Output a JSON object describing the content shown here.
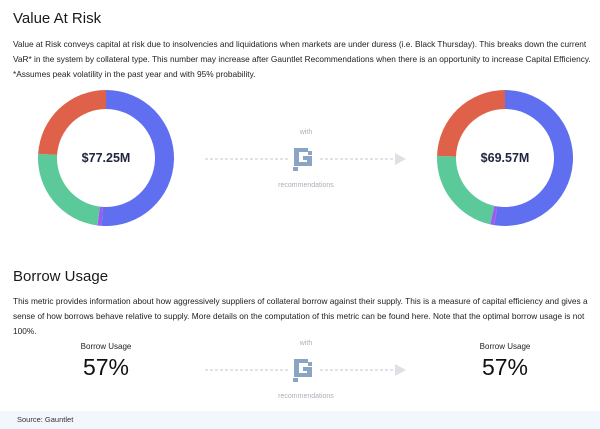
{
  "var_section": {
    "title": "Value At Risk",
    "description": "Value at Risk conveys capital at risk due to insolvencies and liquidations when markets are under duress (i.e. Black Thursday). This breaks down the current VaR* in the system by collateral type. This number may increase after Gauntlet Recommendations when there is an opportunity to increase Capital Efficiency. *Assumes peak volatility in the past year and with 95% probability.",
    "before_total": "$77.25M",
    "after_total": "$69.57M",
    "with_label": "with",
    "recommendations_label": "recommendations"
  },
  "chart_data": [
    {
      "type": "pie",
      "donut": true,
      "center_label": "$77.25M",
      "colors": [
        "#5f6ff0",
        "#9b5cf0",
        "#5cc99a",
        "#e0614a"
      ],
      "values_percent": [
        51,
        1,
        24,
        24
      ]
    },
    {
      "type": "pie",
      "donut": true,
      "center_label": "$69.57M",
      "colors": [
        "#5f6ff0",
        "#9b5cf0",
        "#5cc99a",
        "#e0614a"
      ],
      "values_percent": [
        52.5,
        1,
        22,
        24.5
      ]
    }
  ],
  "borrow_section": {
    "title": "Borrow Usage",
    "description": "This metric provides information about how aggressively suppliers of collateral borrow against their supply. This is a measure of capital efficiency and gives a sense of how borrows behave relative to supply. More details on the computation of this metric can be found here. Note that the optimal borrow usage is not 100%.",
    "before_label": "Borrow Usage",
    "before_value": "57%",
    "after_label": "Borrow Usage",
    "after_value": "57%",
    "with_label": "with",
    "recommendations_label": "recommendations"
  },
  "footer": {
    "source": "Source: Gauntlet"
  },
  "colors": {
    "logo": "#8aa5c4",
    "arrow": "#d5dae0",
    "footer_bg": "#f1f7fc"
  }
}
